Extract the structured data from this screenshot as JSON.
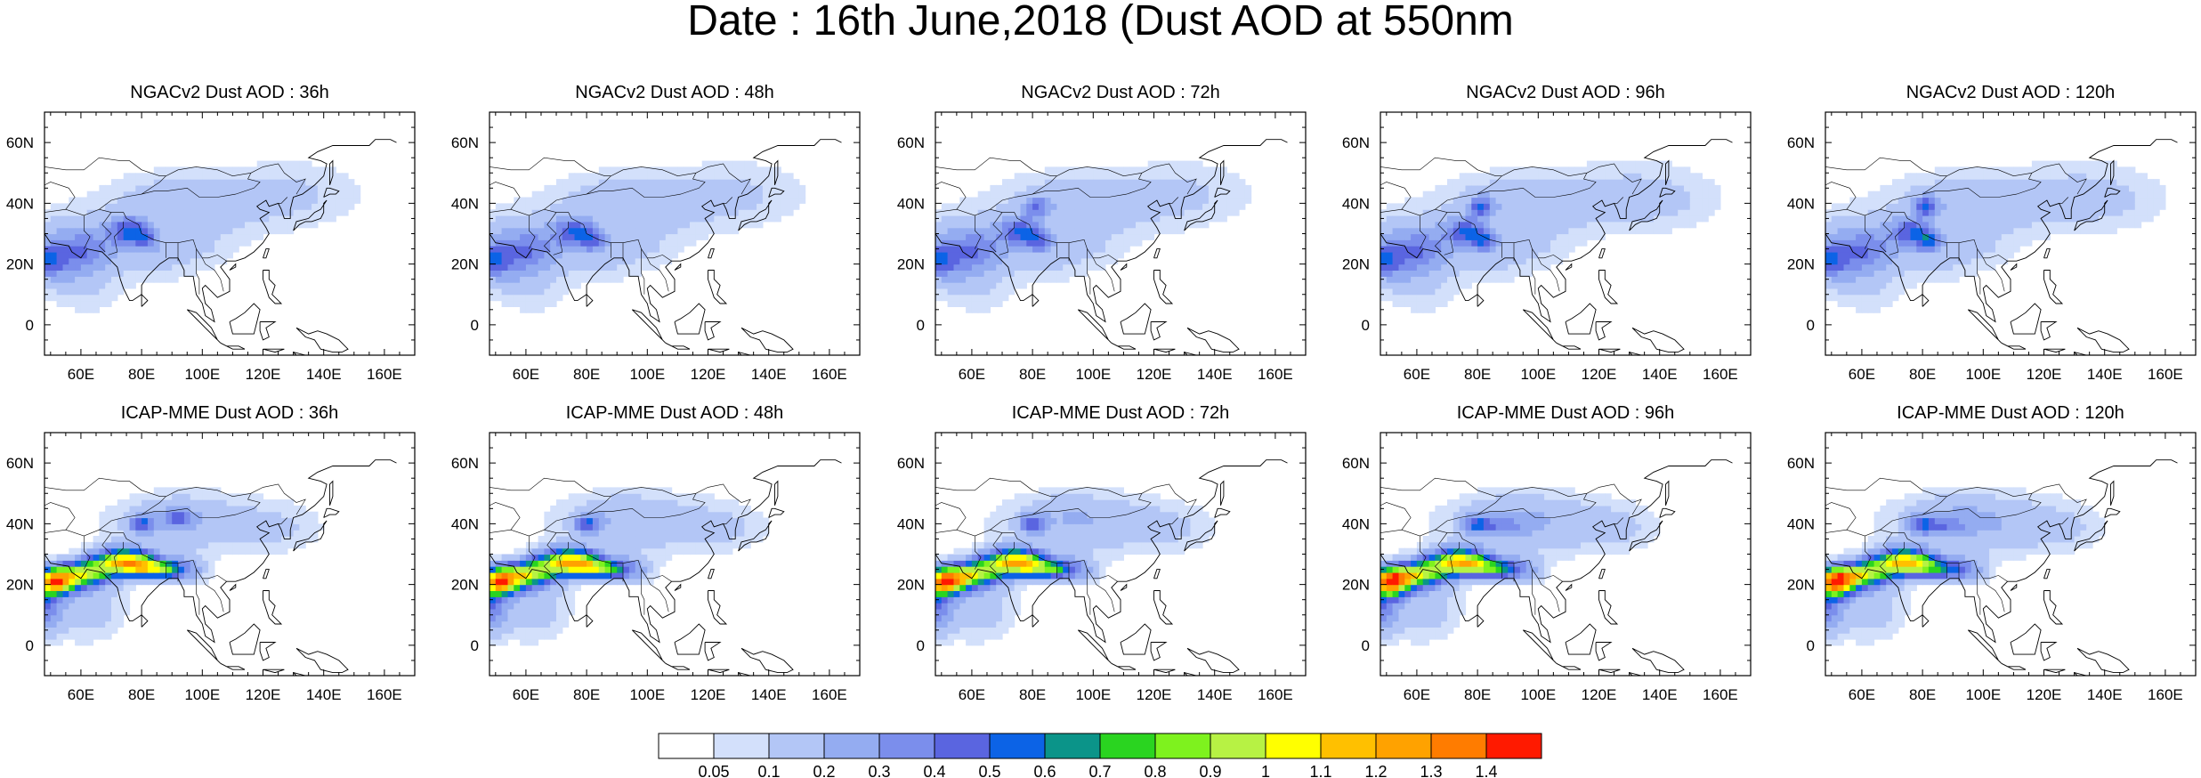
{
  "title": "Date : 16th June,2018 (Dust AOD at 550nm",
  "panels": [
    {
      "title": "NGACv2 Dust AOD : 36h",
      "model": "ngac",
      "variant": 0
    },
    {
      "title": "NGACv2 Dust AOD : 48h",
      "model": "ngac",
      "variant": 1
    },
    {
      "title": "NGACv2 Dust AOD : 72h",
      "model": "ngac",
      "variant": 2
    },
    {
      "title": "NGACv2 Dust AOD : 96h",
      "model": "ngac",
      "variant": 3
    },
    {
      "title": "NGACv2 Dust AOD : 120h",
      "model": "ngac",
      "variant": 4
    },
    {
      "title": "ICAP-MME Dust AOD : 36h",
      "model": "icap",
      "variant": 0
    },
    {
      "title": "ICAP-MME Dust AOD : 48h",
      "model": "icap",
      "variant": 1
    },
    {
      "title": "ICAP-MME Dust AOD : 72h",
      "model": "icap",
      "variant": 2
    },
    {
      "title": "ICAP-MME Dust AOD : 96h",
      "model": "icap",
      "variant": 3
    },
    {
      "title": "ICAP-MME Dust AOD : 120h",
      "model": "icap",
      "variant": 4
    }
  ],
  "map_extent": {
    "lon": [
      48,
      170
    ],
    "lat": [
      -10,
      70
    ]
  },
  "lon_ticks": [
    {
      "value": 60,
      "label": "60E"
    },
    {
      "value": 80,
      "label": "80E"
    },
    {
      "value": 100,
      "label": "100E"
    },
    {
      "value": 120,
      "label": "120E"
    },
    {
      "value": 140,
      "label": "140E"
    },
    {
      "value": 160,
      "label": "160E"
    }
  ],
  "lat_ticks": [
    {
      "value": 0,
      "label": "0"
    },
    {
      "value": 20,
      "label": "20N"
    },
    {
      "value": 40,
      "label": "40N"
    },
    {
      "value": 60,
      "label": "60N"
    }
  ],
  "colorbar": {
    "levels": [
      "0.05",
      "0.1",
      "0.2",
      "0.3",
      "0.4",
      "0.5",
      "0.6",
      "0.7",
      "0.8",
      "0.9",
      "1",
      "1.1",
      "1.2",
      "1.3",
      "1.4"
    ],
    "colors": [
      "#ffffff",
      "#d3e0fb",
      "#b3c6f6",
      "#94acf1",
      "#7b8eec",
      "#5a65e0",
      "#0c63e6",
      "#0b9489",
      "#2ad420",
      "#7ef21e",
      "#b7f244",
      "#ffff00",
      "#ffc000",
      "#ffa200",
      "#ff7c00",
      "#ff1a00"
    ]
  }
}
